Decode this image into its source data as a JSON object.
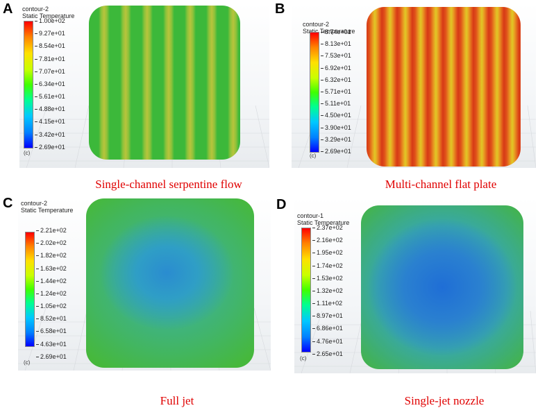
{
  "panels": [
    {
      "letter": "A",
      "legend_title_1": "contour-2",
      "legend_title_2": "Static Temperature",
      "ticks": [
        "1.00e+02",
        "9.27e+01",
        "8.54e+01",
        "7.81e+01",
        "7.07e+01",
        "6.34e+01",
        "5.61e+01",
        "4.88e+01",
        "4.15e+01",
        "3.42e+01",
        "2.69e+01"
      ],
      "unit": "(c)",
      "caption": "Single-channel serpentine flow",
      "pattern": "green-stripes"
    },
    {
      "letter": "B",
      "legend_title_1": "contour-2",
      "legend_title_2": "Static Temperature",
      "ticks": [
        "8.74e+01",
        "8.13e+01",
        "7.53e+01",
        "6.92e+01",
        "6.32e+01",
        "5.71e+01",
        "5.11e+01",
        "4.50e+01",
        "3.90e+01",
        "3.29e+01",
        "2.69e+01"
      ],
      "unit": "(c)",
      "caption": "Multi-channel flat plate",
      "pattern": "red-stripes"
    },
    {
      "letter": "C",
      "legend_title_1": "contour-2",
      "legend_title_2": "Static Temperature",
      "ticks": [
        "2.21e+02",
        "2.02e+02",
        "1.82e+02",
        "1.63e+02",
        "1.44e+02",
        "1.24e+02",
        "1.05e+02",
        "8.52e+01",
        "6.58e+01",
        "4.63e+01",
        "2.69e+01"
      ],
      "unit": "(c)",
      "caption": "Full jet",
      "pattern": "green-blue-center"
    },
    {
      "letter": "D",
      "legend_title_1": "contour-1",
      "legend_title_2": "Static Temperature",
      "ticks": [
        "2.37e+02",
        "2.16e+02",
        "1.95e+02",
        "1.74e+02",
        "1.53e+02",
        "1.32e+02",
        "1.11e+02",
        "8.97e+01",
        "6.86e+01",
        "4.76e+01",
        "2.65e+01"
      ],
      "unit": "(c)",
      "caption": "Single-jet nozzle",
      "pattern": "blue-center"
    }
  ]
}
